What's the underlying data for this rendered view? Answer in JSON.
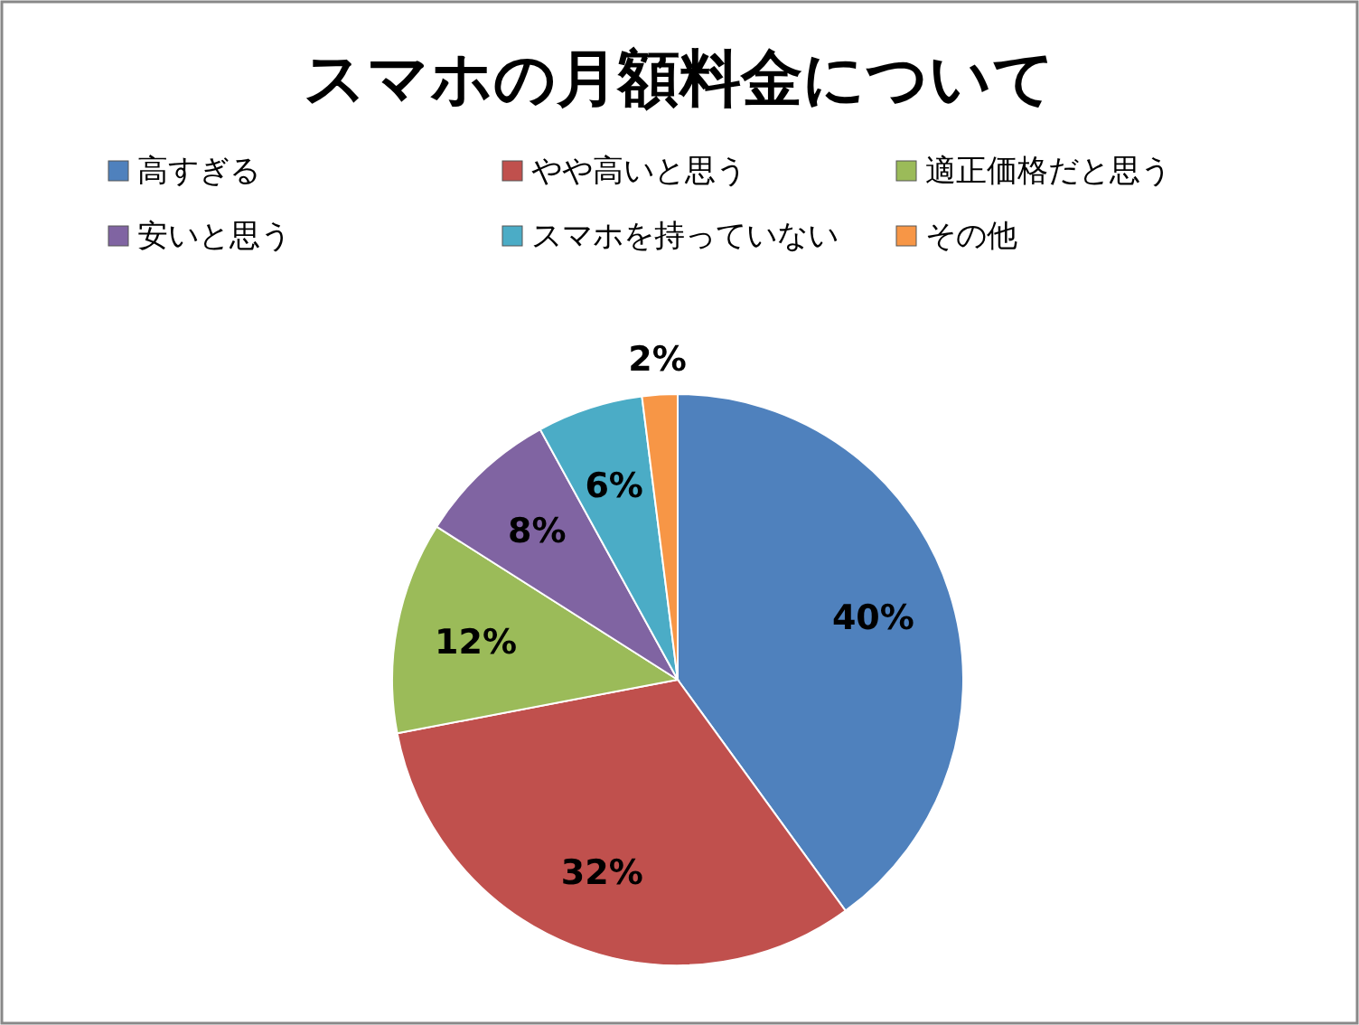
{
  "chart_data": {
    "type": "pie",
    "title": "スマホの月額料金について",
    "categories": [
      "高すぎる",
      "やや高いと思う",
      "適正価格だと思う",
      "安いと思う",
      "スマホを持っていない",
      "その他"
    ],
    "values": [
      40,
      32,
      12,
      8,
      6,
      2
    ],
    "colors": [
      "#4f81bd",
      "#c0504d",
      "#9bbb59",
      "#8064a2",
      "#4bacc6",
      "#f79646"
    ],
    "value_labels": [
      "40%",
      "32%",
      "12%",
      "8%",
      "6%",
      "2%"
    ],
    "legend": "top"
  }
}
